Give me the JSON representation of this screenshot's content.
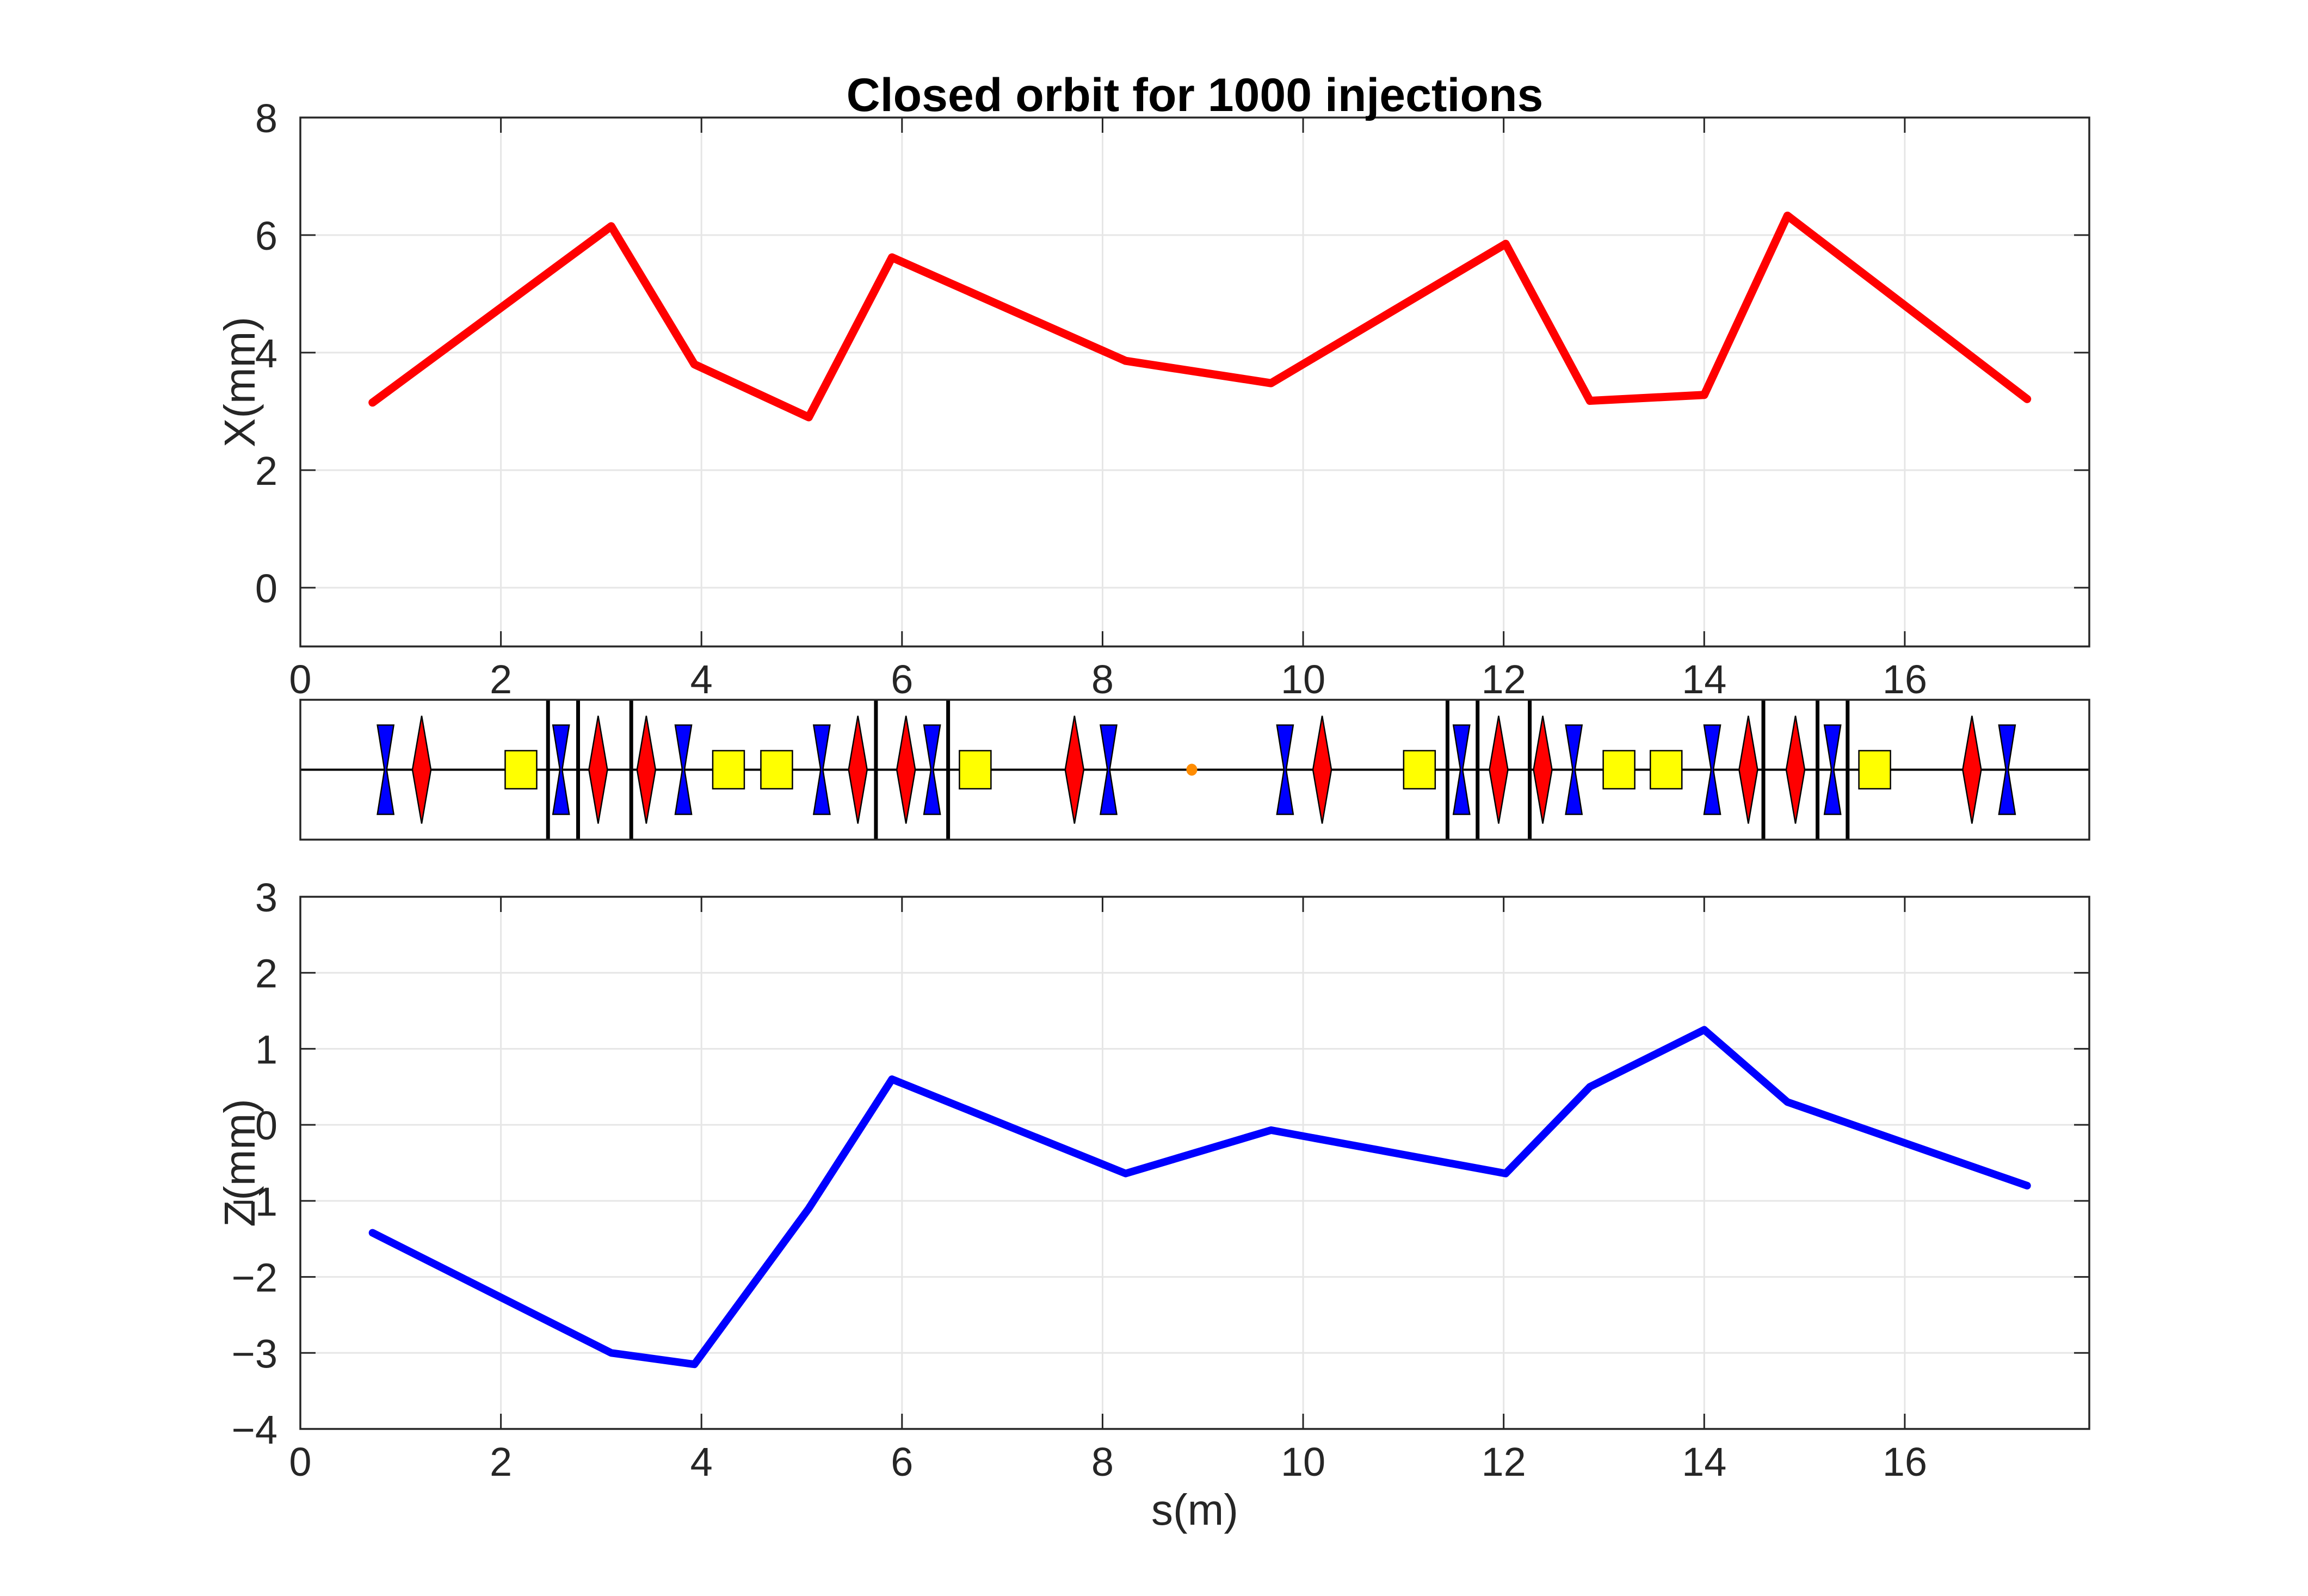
{
  "figure": {
    "background": "#ffffff",
    "title": "Closed orbit for 1000 injections"
  },
  "colors": {
    "orbit_x": "#ff0000",
    "orbit_z": "#0000ff",
    "quad_bowtie": "#0000ff",
    "lens": "#ff0000",
    "rect": "#ffff00",
    "marker_dot": "#ff8c00",
    "bpm_line": "#000000",
    "grid": "#e6e6e6",
    "axis": "#262626"
  },
  "chart_data": [
    {
      "id": "closed-orbit-horizontal",
      "type": "line",
      "title": "Closed orbit for 1000 injections",
      "xlabel": "",
      "ylabel": "X(mm)",
      "xlim": [
        0,
        17.84
      ],
      "ylim": [
        -1,
        8
      ],
      "grid": true,
      "xticks": {
        "values": [
          0,
          2,
          4,
          6,
          8,
          10,
          12,
          14,
          16
        ],
        "labels": [
          "0",
          "2",
          "4",
          "6",
          "8",
          "10",
          "12",
          "14",
          "16"
        ],
        "labels_visible": true
      },
      "yticks": {
        "values": [
          0,
          2,
          4,
          6,
          8
        ],
        "labels": [
          "0",
          "2",
          "4",
          "6",
          "8"
        ]
      },
      "series": [
        {
          "name": "horizontal closed orbit",
          "color": "#ff0000",
          "line_width": 15,
          "x": [
            0.72,
            3.1,
            3.93,
            5.07,
            5.9,
            8.23,
            9.68,
            12.02,
            12.86,
            14.0,
            14.83,
            17.22
          ],
          "y": [
            3.15,
            6.15,
            3.8,
            2.9,
            5.62,
            3.86,
            3.48,
            5.85,
            3.18,
            3.28,
            6.33,
            3.21
          ]
        }
      ]
    },
    {
      "id": "lattice-synoptic",
      "type": "diagram",
      "xlim": [
        0,
        17.84
      ],
      "elements": [
        {
          "type": "bowtie-blue",
          "s": 0.85
        },
        {
          "type": "lens-red",
          "s": 1.21
        },
        {
          "type": "rect-yellow",
          "s": 2.2
        },
        {
          "type": "line-black",
          "s": 2.47
        },
        {
          "type": "bowtie-blue",
          "s": 2.6
        },
        {
          "type": "line-black",
          "s": 2.77
        },
        {
          "type": "lens-red",
          "s": 2.97
        },
        {
          "type": "line-black",
          "s": 3.3
        },
        {
          "type": "lens-red",
          "s": 3.45
        },
        {
          "type": "bowtie-blue",
          "s": 3.82
        },
        {
          "type": "rect-yellow",
          "s": 4.27
        },
        {
          "type": "rect-yellow",
          "s": 4.75
        },
        {
          "type": "bowtie-blue",
          "s": 5.2
        },
        {
          "type": "lens-red",
          "s": 5.56
        },
        {
          "type": "line-black",
          "s": 5.74
        },
        {
          "type": "lens-red",
          "s": 6.04
        },
        {
          "type": "bowtie-blue",
          "s": 6.3
        },
        {
          "type": "line-black",
          "s": 6.46
        },
        {
          "type": "rect-yellow",
          "s": 6.73
        },
        {
          "type": "lens-red",
          "s": 7.72
        },
        {
          "type": "bowtie-blue",
          "s": 8.06
        },
        {
          "type": "dot-orange",
          "s": 8.89
        },
        {
          "type": "bowtie-blue",
          "s": 9.82
        },
        {
          "type": "lens-red",
          "s": 10.19
        },
        {
          "type": "rect-yellow",
          "s": 11.16
        },
        {
          "type": "line-black",
          "s": 11.44
        },
        {
          "type": "bowtie-blue",
          "s": 11.58
        },
        {
          "type": "line-black",
          "s": 11.74
        },
        {
          "type": "lens-red",
          "s": 11.95
        },
        {
          "type": "line-black",
          "s": 12.26
        },
        {
          "type": "lens-red",
          "s": 12.39
        },
        {
          "type": "bowtie-blue",
          "s": 12.7
        },
        {
          "type": "rect-yellow",
          "s": 13.15
        },
        {
          "type": "rect-yellow",
          "s": 13.62
        },
        {
          "type": "bowtie-blue",
          "s": 14.08
        },
        {
          "type": "lens-red",
          "s": 14.44
        },
        {
          "type": "line-black",
          "s": 14.59
        },
        {
          "type": "lens-red",
          "s": 14.91
        },
        {
          "type": "line-black",
          "s": 15.13
        },
        {
          "type": "bowtie-blue",
          "s": 15.28
        },
        {
          "type": "line-black",
          "s": 15.43
        },
        {
          "type": "rect-yellow",
          "s": 15.7
        },
        {
          "type": "lens-red",
          "s": 16.67
        },
        {
          "type": "bowtie-blue",
          "s": 17.02
        }
      ]
    },
    {
      "id": "closed-orbit-vertical",
      "type": "line",
      "title": "",
      "xlabel": "s(m)",
      "ylabel": "Z(mm)",
      "xlim": [
        0,
        17.84
      ],
      "ylim": [
        -4,
        3
      ],
      "grid": true,
      "xticks": {
        "values": [
          0,
          2,
          4,
          6,
          8,
          10,
          12,
          14,
          16
        ],
        "labels": [
          "0",
          "2",
          "4",
          "6",
          "8",
          "10",
          "12",
          "14",
          "16"
        ],
        "labels_visible": true
      },
      "yticks": {
        "values": [
          -4,
          -3,
          -2,
          -1,
          0,
          1,
          2,
          3
        ],
        "labels": [
          "−4",
          "−3",
          "−2",
          "−1",
          "0",
          "1",
          "2",
          "3"
        ]
      },
      "series": [
        {
          "name": "vertical closed orbit",
          "color": "#0000ff",
          "line_width": 14,
          "x": [
            0.72,
            3.1,
            3.93,
            5.07,
            5.9,
            8.23,
            9.68,
            12.02,
            12.86,
            14.0,
            14.83,
            17.22
          ],
          "y": [
            -1.42,
            -3.0,
            -3.15,
            -1.1,
            0.6,
            -0.64,
            -0.07,
            -0.64,
            0.5,
            1.25,
            0.3,
            -0.8
          ]
        }
      ]
    }
  ]
}
